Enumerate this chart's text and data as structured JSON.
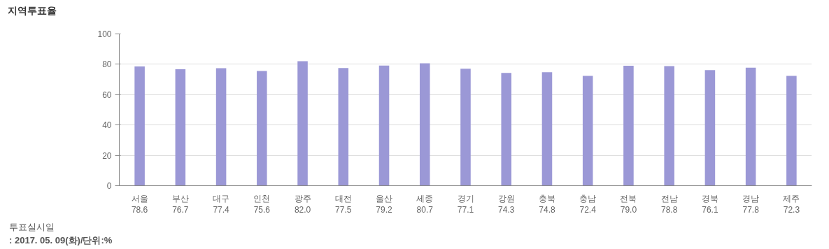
{
  "chart_data": {
    "type": "bar",
    "title": "지역투표율",
    "categories": [
      "서울",
      "부산",
      "대구",
      "인천",
      "광주",
      "대전",
      "울산",
      "세종",
      "경기",
      "강원",
      "충북",
      "충남",
      "전북",
      "전남",
      "경북",
      "경남",
      "제주"
    ],
    "values": [
      78.6,
      76.7,
      77.4,
      75.6,
      82.0,
      77.5,
      79.2,
      80.7,
      77.1,
      74.3,
      74.8,
      72.4,
      79.0,
      78.8,
      76.1,
      77.8,
      72.3
    ],
    "value_labels": [
      "78.6",
      "76.7",
      "77.4",
      "75.6",
      "82.0",
      "77.5",
      "79.2",
      "80.7",
      "77.1",
      "74.3",
      "74.8",
      "72.4",
      "79.0",
      "78.8",
      "76.1",
      "77.8",
      "72.3"
    ],
    "color": "#9b98d6",
    "ylim": [
      0,
      100
    ],
    "yticks": [
      0,
      20,
      40,
      60,
      80,
      100
    ],
    "grid": "y",
    "annotations": [
      "투표실시일",
      ": 2017. 05. 09(화)/단위:%"
    ]
  }
}
